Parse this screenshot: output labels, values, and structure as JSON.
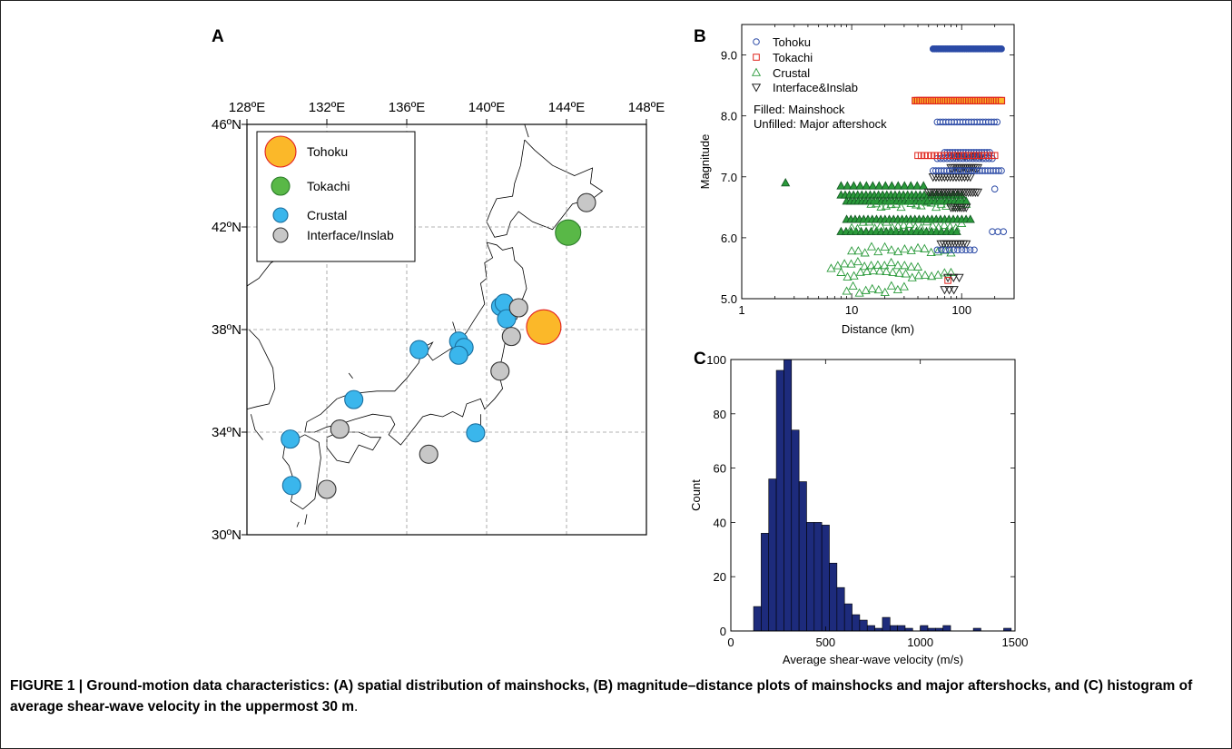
{
  "panels": {
    "a": "A",
    "b": "B",
    "c": "C"
  },
  "caption": {
    "text": "FIGURE 1 | Ground-motion data characteristics: (A) spatial distribution of mainshocks, (B) magnitude–distance plots of mainshocks and major aftershocks, and (C) histogram of average shear-wave velocity in the uppermost 30 m",
    "end": "."
  },
  "colors": {
    "tohoku": "#fbb829",
    "tohoku_edge": "#e31f1f",
    "tokachi": "#59b847",
    "crustal": "#3ab6ec",
    "interface": "#c7c7c7",
    "ocean_grid": "#9a9a9a",
    "tohoku_b": "#2b4aa6",
    "tokachi_b": "#e0261d",
    "crustal_b": "#2a9a3a",
    "inter_b": "#222222",
    "hist": "#1d2b7c"
  },
  "chart_data": [
    {
      "type": "scatter",
      "panel": "A",
      "xlabel": "",
      "ylabel": "",
      "xlim": [
        128,
        148
      ],
      "ylim": [
        30,
        46
      ],
      "x_ticks": [
        {
          "v": 128,
          "label": "128ºE"
        },
        {
          "v": 132,
          "label": "132ºE"
        },
        {
          "v": 136,
          "label": "136ºE"
        },
        {
          "v": 140,
          "label": "140ºE"
        },
        {
          "v": 144,
          "label": "144ºE"
        },
        {
          "v": 148,
          "label": "148ºE"
        }
      ],
      "y_ticks": [
        {
          "v": 46,
          "label": "46ºN"
        },
        {
          "v": 42,
          "label": "42ºN"
        },
        {
          "v": 38,
          "label": "38ºN"
        },
        {
          "v": 34,
          "label": "34ºN"
        },
        {
          "v": 30,
          "label": "30ºN"
        }
      ],
      "grid": true,
      "legend_position": "top-left",
      "series": [
        {
          "name": "Tohoku",
          "key": "tohoku",
          "points": [
            [
              142.86,
              38.1
            ]
          ]
        },
        {
          "name": "Tokachi",
          "key": "tokachi",
          "points": [
            [
              144.08,
              41.78
            ]
          ]
        },
        {
          "name": "Crustal",
          "key": "crustal",
          "points": [
            [
              130.17,
              33.73
            ],
            [
              130.24,
              31.92
            ],
            [
              133.35,
              35.27
            ],
            [
              136.62,
              37.22
            ],
            [
              138.6,
              37.55
            ],
            [
              138.87,
              37.3
            ],
            [
              138.6,
              37.0
            ],
            [
              140.7,
              38.9
            ],
            [
              140.88,
              39.03
            ],
            [
              141.0,
              38.42
            ],
            [
              139.45,
              33.97
            ]
          ]
        },
        {
          "name": "Interface/Inslab",
          "key": "interface",
          "points": [
            [
              145.0,
              42.95
            ],
            [
              141.6,
              38.85
            ],
            [
              141.24,
              37.73
            ],
            [
              140.67,
              36.38
            ],
            [
              132.0,
              31.77
            ],
            [
              132.65,
              34.12
            ],
            [
              137.1,
              33.14
            ]
          ]
        }
      ]
    },
    {
      "type": "scatter",
      "panel": "B",
      "xlabel": "Distance (km)",
      "ylabel": "Magnitude",
      "x_scale": "log",
      "xlim": [
        1,
        300
      ],
      "ylim": [
        5.0,
        9.5
      ],
      "x_ticks": [
        {
          "v": 1,
          "label": "1"
        },
        {
          "v": 10,
          "label": "10"
        },
        {
          "v": 100,
          "label": "100"
        }
      ],
      "y_ticks": [
        {
          "v": 5,
          "label": "5.0"
        },
        {
          "v": 6,
          "label": "6.0"
        },
        {
          "v": 7,
          "label": "7.0"
        },
        {
          "v": 8,
          "label": "8.0"
        },
        {
          "v": 9,
          "label": "9.0"
        }
      ],
      "legend_position": "top-left",
      "legend_note": [
        "Filled: Mainshock",
        "Unfilled: Major aftershock"
      ],
      "series": [
        {
          "name": "Tohoku",
          "key": "tohoku_b",
          "marker": "circle",
          "groups": [
            {
              "mag": 9.1,
              "dmin": 55,
              "dmax": 230,
              "filled": true,
              "n": 40
            },
            {
              "mag": 7.9,
              "dmin": 60,
              "dmax": 210,
              "filled": false,
              "n": 22
            },
            {
              "mag": 7.4,
              "dmin": 70,
              "dmax": 180,
              "filled": false,
              "n": 18
            },
            {
              "mag": 7.3,
              "dmin": 60,
              "dmax": 190,
              "filled": false,
              "n": 18
            },
            {
              "mag": 7.1,
              "dmin": 55,
              "dmax": 230,
              "filled": false,
              "n": 26
            },
            {
              "mag": 6.8,
              "dmin": 200,
              "dmax": 200,
              "filled": false,
              "n": 1
            },
            {
              "mag": 6.1,
              "dmin": 190,
              "dmax": 240,
              "filled": false,
              "n": 3
            },
            {
              "mag": 5.8,
              "dmin": 60,
              "dmax": 130,
              "filled": false,
              "n": 10
            }
          ]
        },
        {
          "name": "Tokachi",
          "key": "tokachi_b",
          "marker": "square",
          "groups": [
            {
              "mag": 8.25,
              "dmin": 38,
              "dmax": 230,
              "filled": true,
              "n": 38
            },
            {
              "mag": 7.35,
              "dmin": 40,
              "dmax": 200,
              "filled": false,
              "n": 24
            },
            {
              "mag": 5.3,
              "dmin": 75,
              "dmax": 75,
              "filled": false,
              "n": 1
            }
          ]
        },
        {
          "name": "Crustal",
          "key": "crustal_b",
          "marker": "triangle",
          "groups": [
            {
              "mag": 6.9,
              "dmin": 2.5,
              "dmax": 2.5,
              "filled": true,
              "n": 1
            },
            {
              "mag": 6.85,
              "dmin": 8,
              "dmax": 45,
              "filled": true,
              "n": 14
            },
            {
              "mag": 6.7,
              "dmin": 8,
              "dmax": 100,
              "filled": true,
              "n": 30
            },
            {
              "mag": 6.6,
              "dmin": 9,
              "dmax": 110,
              "filled": true,
              "n": 32
            },
            {
              "mag": 6.3,
              "dmin": 9,
              "dmax": 120,
              "filled": true,
              "n": 30
            },
            {
              "mag": 6.1,
              "dmin": 8,
              "dmax": 90,
              "filled": true,
              "n": 24
            },
            {
              "mag": 6.55,
              "dmin": 15,
              "dmax": 110,
              "filled": false,
              "n": 20
            },
            {
              "mag": 6.2,
              "dmin": 10,
              "dmax": 100,
              "filled": false,
              "n": 20
            },
            {
              "mag": 5.8,
              "dmin": 10,
              "dmax": 80,
              "filled": false,
              "n": 16
            },
            {
              "mag": 5.55,
              "dmin": 6.5,
              "dmax": 40,
              "filled": false,
              "n": 14
            },
            {
              "mag": 5.4,
              "dmin": 8,
              "dmax": 80,
              "filled": false,
              "n": 18
            },
            {
              "mag": 5.15,
              "dmin": 9,
              "dmax": 30,
              "filled": false,
              "n": 10
            }
          ]
        },
        {
          "name": "Interface&Inslab",
          "key": "inter_b",
          "marker": "triangle-down",
          "groups": [
            {
              "mag": 7.35,
              "dmin": 80,
              "dmax": 150,
              "filled": false,
              "n": 14
            },
            {
              "mag": 7.15,
              "dmin": 80,
              "dmax": 140,
              "filled": false,
              "n": 14
            },
            {
              "mag": 7.0,
              "dmin": 55,
              "dmax": 120,
              "filled": false,
              "n": 14
            },
            {
              "mag": 6.75,
              "dmin": 50,
              "dmax": 140,
              "filled": false,
              "n": 22
            },
            {
              "mag": 6.5,
              "dmin": 80,
              "dmax": 110,
              "filled": false,
              "n": 8
            },
            {
              "mag": 5.9,
              "dmin": 65,
              "dmax": 110,
              "filled": false,
              "n": 10
            },
            {
              "mag": 5.35,
              "dmin": 75,
              "dmax": 95,
              "filled": false,
              "n": 3
            },
            {
              "mag": 5.15,
              "dmin": 70,
              "dmax": 85,
              "filled": false,
              "n": 3
            }
          ]
        }
      ]
    },
    {
      "type": "bar",
      "panel": "C",
      "xlabel": "Average shear-wave velocity (m/s)",
      "ylabel": "Count",
      "xlim": [
        0,
        1500
      ],
      "ylim": [
        0,
        100
      ],
      "x_ticks": [
        {
          "v": 0,
          "label": "0"
        },
        {
          "v": 500,
          "label": "500"
        },
        {
          "v": 1000,
          "label": "1000"
        },
        {
          "v": 1500,
          "label": "1500"
        }
      ],
      "y_ticks": [
        {
          "v": 0,
          "label": "0"
        },
        {
          "v": 20,
          "label": "20"
        },
        {
          "v": 40,
          "label": "40"
        },
        {
          "v": 60,
          "label": "60"
        },
        {
          "v": 80,
          "label": "80"
        },
        {
          "v": 100,
          "label": "100"
        }
      ],
      "bin_width": 40,
      "bins_start": [
        120,
        160,
        200,
        240,
        280,
        320,
        360,
        400,
        440,
        480,
        520,
        560,
        600,
        640,
        680,
        720,
        760,
        800,
        840,
        880,
        920,
        960,
        1000,
        1040,
        1080,
        1120,
        1160,
        1200,
        1240,
        1280,
        1320,
        1360,
        1400,
        1440
      ],
      "values": [
        9,
        36,
        56,
        96,
        100,
        74,
        55,
        40,
        40,
        39,
        25,
        16,
        10,
        6,
        4,
        2,
        1,
        5,
        2,
        2,
        1,
        0,
        2,
        1,
        1,
        2,
        0,
        0,
        0,
        1,
        0,
        0,
        0,
        1
      ]
    }
  ]
}
